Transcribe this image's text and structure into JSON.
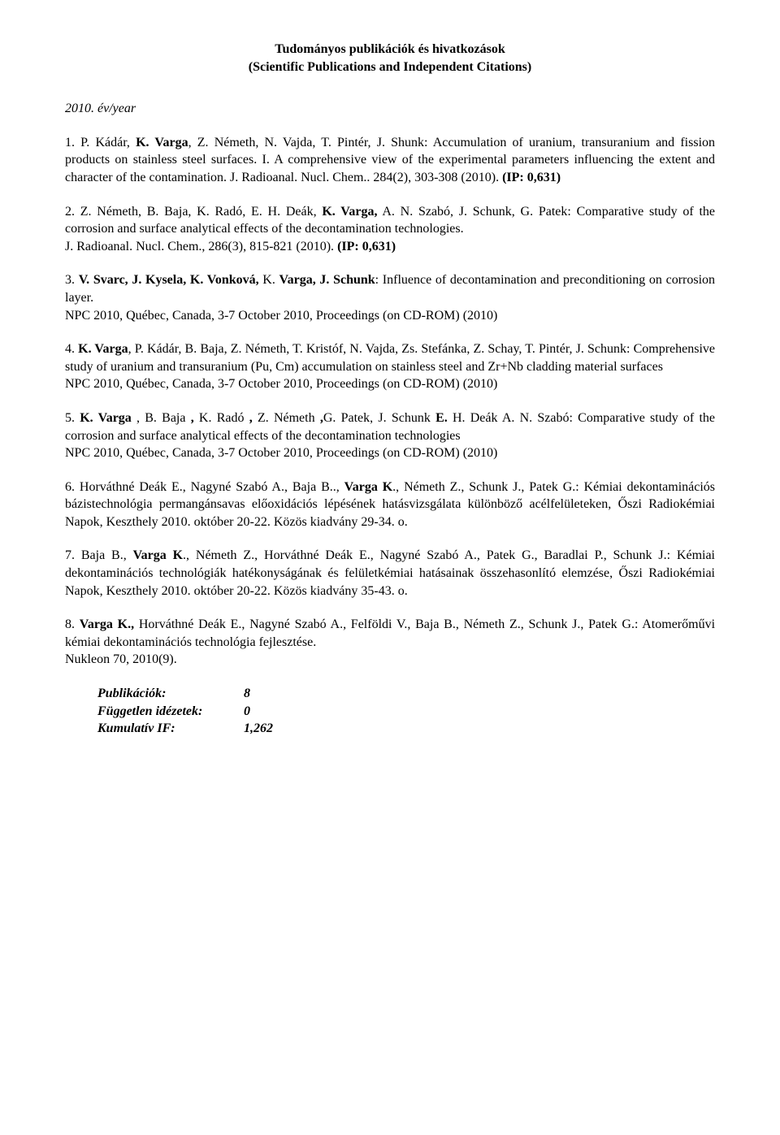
{
  "title_line1": "Tudományos publikációk és hivatkozások",
  "title_line2": "(Scientific Publications and Independent Citations)",
  "year_label": "2010. év/year",
  "entries": [
    {
      "num": "1. ",
      "authors_pre": "P. Kádár, ",
      "bold1": "K. Varga",
      "mid": ", Z. Németh, N. Vajda, T. Pintér, J. Shunk: Accumulation of uranium, transuranium and fission products on stainless steel surfaces. I. A comprehensive view of the experimental parameters influencing the extent and character of the contamination. J. Radioanal. Nucl. Chem.. 284(2), 303-308 (2010). ",
      "ip": "(IP: 0,631)"
    },
    {
      "num": "2. ",
      "authors_pre": "Z. Németh, B. Baja, K. Radó, E. H. Deák, ",
      "bold1": "K. Varga,",
      "mid": " A. N. Szabó, J. Schunk, G. Patek: Comparative study of the corrosion and surface analytical effects of the decontamination technologies.\nJ. Radioanal. Nucl. Chem., 286(3), 815-821 (2010). ",
      "ip": "(IP: 0,631)"
    },
    {
      "num": "3. ",
      "bold1": "V. Svarc, J. Kysela, K. Vonková, ",
      "mid1": "K. ",
      "bold2": "Varga, J. Schunk",
      "mid": ": Influence of decontamination and preconditioning on corrosion layer.\nNPC 2010, Québec, Canada, 3-7 October 2010, Proceedings (on CD-ROM) (2010)"
    },
    {
      "num": "4. ",
      "bold1": "K. Varga",
      "mid": ", P. Kádár, B. Baja, Z. Németh, T. Kristóf, N. Vajda, Zs. Stefánka, Z. Schay, T. Pintér, J. Schunk: Comprehensive study of uranium and transuranium (Pu, Cm) accumulation on stainless steel and Zr+Nb cladding material surfaces\nNPC 2010, Québec, Canada, 3-7 October 2010, Proceedings (on CD-ROM) (2010)"
    },
    {
      "num": "5. ",
      "bold1": "K. Varga ",
      "mid1": ", B. Baja ",
      "bold2": ",",
      "mid2": " K. Radó ",
      "bold3": ",",
      "mid3": " Z. Németh ",
      "bold4": ",",
      "mid4": "G. Patek, J. Schunk ",
      "bold5": "E.",
      "mid": " H. Deák A. N. Szabó: Comparative study of the corrosion and surface analytical effects of the decontamination technologies\nNPC 2010, Québec, Canada, 3-7 October 2010, Proceedings (on CD-ROM) (2010)"
    },
    {
      "num": "6. ",
      "authors_pre": "Horváthné Deák E., Nagyné Szabó A., Baja B.., ",
      "bold1": "Varga K",
      "mid": "., Németh Z., Schunk J., Patek G.: Kémiai dekontaminációs bázistechnológia permangánsavas előoxidációs lépésének hatásvizsgálata különböző acélfelületeken, Őszi Radiokémiai Napok, Keszthely 2010. október 20-22. Közös kiadvány 29-34. o."
    },
    {
      "num": "7. ",
      "authors_pre": "Baja B., ",
      "bold1": "Varga K",
      "mid": "., Németh Z., Horváthné Deák E., Nagyné Szabó A., Patek G., Baradlai P., Schunk J.: Kémiai dekontaminációs technológiák hatékonyságának és felületkémiai hatásainak összehasonlító elemzése, Őszi Radiokémiai Napok, Keszthely 2010. október 20-22. Közös kiadvány 35-43. o."
    },
    {
      "num": "8.  ",
      "bold1": "Varga K.,",
      "mid": " Horváthné Deák E., Nagyné Szabó A., Felföldi V., Baja B., Németh Z., Schunk J., Patek G.: Atomerőművi kémiai dekontaminációs technológia fejlesztése.\nNukleon 70, 2010(9)."
    }
  ],
  "summary": {
    "pub_label": "Publikációk:",
    "pub_value": "8",
    "cit_label": "Független idézetek:",
    "cit_value": "0",
    "if_label": "Kumulatív IF:",
    "if_value": "1,262"
  }
}
